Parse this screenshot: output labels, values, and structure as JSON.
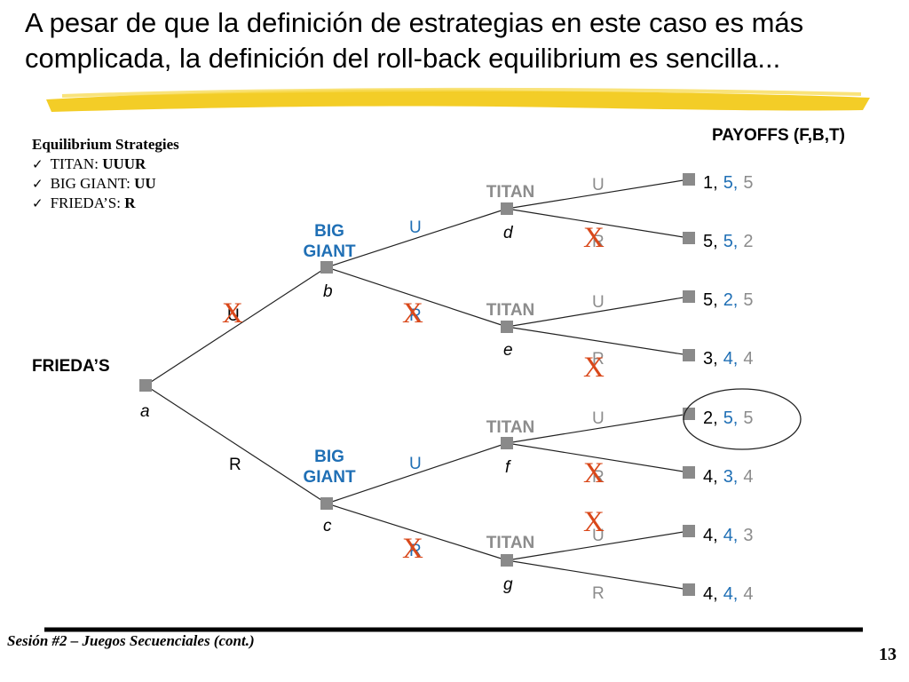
{
  "slide": {
    "title": "A pesar de que la definición de estrategias en este caso es más complicada, la definición del roll-back equilibrium es sencilla...",
    "footer": "Sesión #2 – Juegos Secuenciales (cont.)",
    "page_number": "13"
  },
  "equilibrium": {
    "heading": "Equilibrium Strategies",
    "items": [
      {
        "label": "TITAN: ",
        "value": "UUUR"
      },
      {
        "label": "BIG GIANT: ",
        "value": "UU"
      },
      {
        "label": "FRIEDA’S: ",
        "value": "R"
      }
    ]
  },
  "payoffs_header": "PAYOFFS (F,B,T)",
  "players": {
    "friedas": "FRIEDA’S",
    "big_giant_line1": "BIG",
    "big_giant_line2": "GIANT",
    "titan": "TITAN"
  },
  "nodes": {
    "a": "a",
    "b": "b",
    "c": "c",
    "d": "d",
    "e": "e",
    "f": "f",
    "g": "g"
  },
  "moves": {
    "up": "U",
    "right": "R"
  },
  "cross_mark": "X",
  "payoffs": [
    {
      "f": "1,",
      "b": "5,",
      "t": "5"
    },
    {
      "f": "5,",
      "b": "5,",
      "t": "2"
    },
    {
      "f": "5,",
      "b": "2,",
      "t": "5"
    },
    {
      "f": "3,",
      "b": "4,",
      "t": "4"
    },
    {
      "f": "2,",
      "b": "5,",
      "t": "5"
    },
    {
      "f": "4,",
      "b": "3,",
      "t": "4"
    },
    {
      "f": "4,",
      "b": "4,",
      "t": "3"
    },
    {
      "f": "4,",
      "b": "4,",
      "t": "4"
    }
  ],
  "colors": {
    "player_blue": "#1f6fb5",
    "grey": "#8c8c8c",
    "cross_red": "#d9481a",
    "highlight_yellow": "#f2c80f",
    "node_grey": "#8a8a8a"
  }
}
